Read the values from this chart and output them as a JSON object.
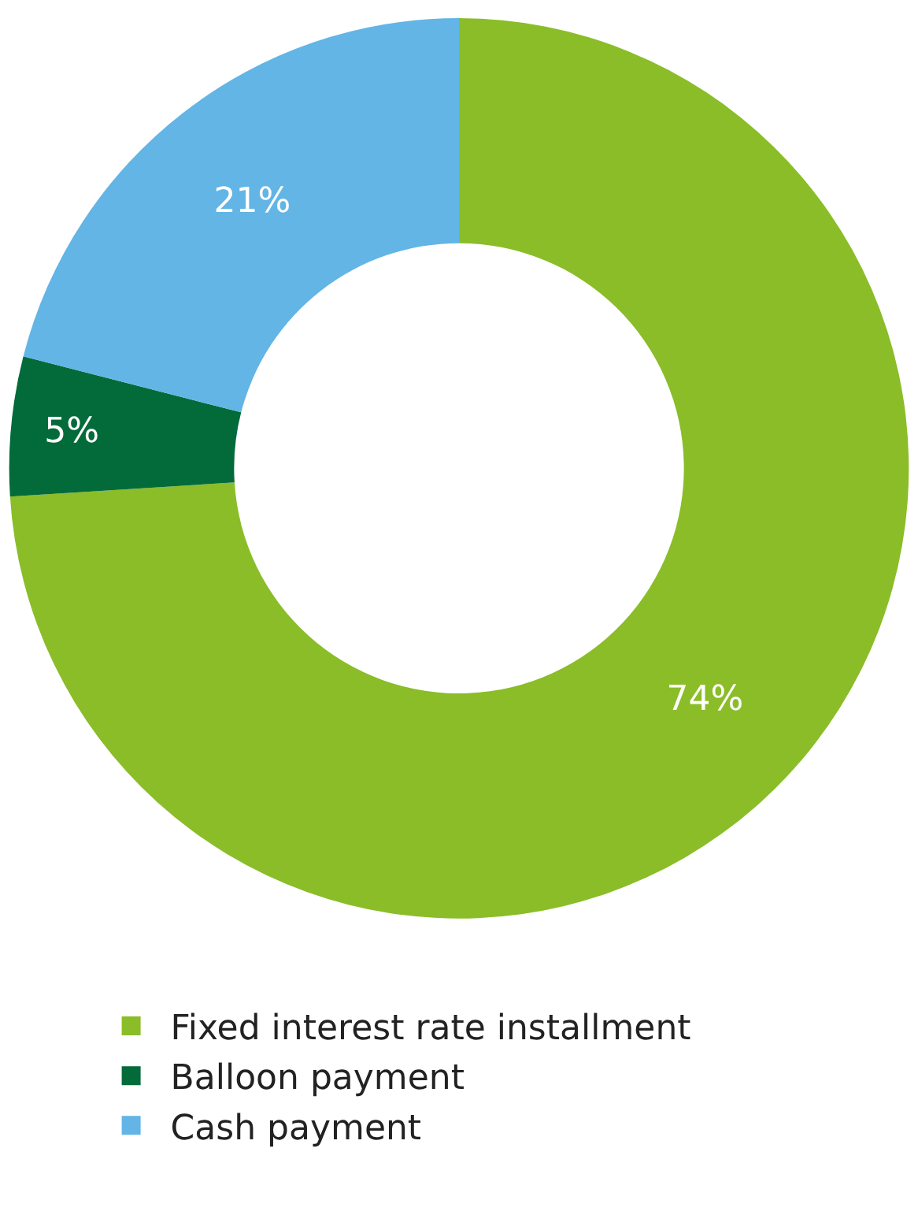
{
  "chart_data": {
    "type": "donut",
    "categories": [
      "Fixed interest rate installment",
      "Balloon payment",
      "Cash payment"
    ],
    "values": [
      74,
      5,
      21
    ],
    "colors": [
      "#8abd28",
      "#036b3a",
      "#62b5e5"
    ],
    "value_labels": [
      "74%",
      "5%",
      "21%"
    ],
    "legend": "bottom"
  }
}
